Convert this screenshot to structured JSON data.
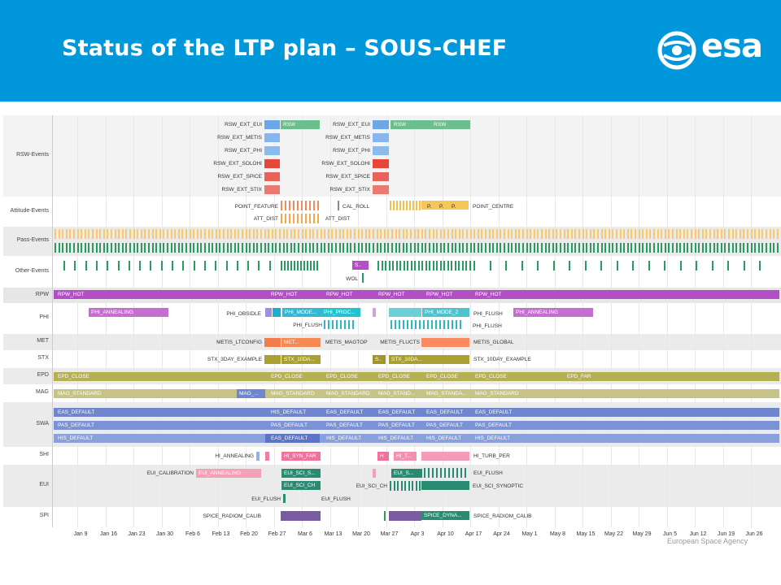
{
  "header": {
    "title": "Status of the LTP plan – SOUS-CHEF",
    "logo_text": "esa",
    "agency": "European Space Agency"
  },
  "colors": {
    "header_bg": "#0098db",
    "rsw": "#6bbf8e",
    "rpw": "#b24fc4",
    "phi": "#c46fd0",
    "met": "#ff7f50",
    "stx": "#a8a030",
    "epd": "#b5b152",
    "mag": "#c7c386",
    "swa": "#6f86cf",
    "shi": "#f08fb0",
    "eui": "#2a8a72"
  },
  "axis": {
    "ticks": [
      "Jan 9",
      "Jan 16",
      "Jan 23",
      "Jan 30",
      "Feb 6",
      "Feb 13",
      "Feb 20",
      "Feb 27",
      "Mar 6",
      "Mar 13",
      "Mar 20",
      "Mar 27",
      "Apr 3",
      "Apr 10",
      "Apr 17",
      "Apr 24",
      "May 1",
      "May 8",
      "May 15",
      "May 22",
      "May 29",
      "Jun 5",
      "Jun 12",
      "Jun 19",
      "Jun 26"
    ]
  },
  "rows": [
    {
      "name": "RSW-Events",
      "labels": [
        "RSW_EXT_EUI",
        "RSW_EXT_METIS",
        "RSW_EXT_PHI",
        "RSW_EXT_SOLOHI",
        "RSW_EXT_SPICE",
        "RSW_EXT_STIX",
        "RSW_EXT_EUI",
        "RSW_EXT_METIS",
        "RSW_EXT_PHI",
        "RSW_EXT_SOLOHI",
        "RSW_EXT_SPICE",
        "RSW_EXT_STIX",
        "RSW",
        "RSW",
        "RSW"
      ]
    },
    {
      "name": "Attitude-Events",
      "labels": [
        "POINT_FEATURE",
        "ATT_DIST",
        "ATT_DIST",
        "CAL_ROLL",
        "P.",
        "P.",
        "P.",
        "POINT_CENTRE"
      ]
    },
    {
      "name": "Pass-Events",
      "labels": []
    },
    {
      "name": "Other-Events",
      "labels": [
        "S..",
        "WOL"
      ]
    },
    {
      "name": "RPW",
      "labels": [
        "RPW_HOT",
        "RPW_HOT",
        "RPW_HOT",
        "RPW_HOT",
        "RPW_HOT",
        "RPW_HOT"
      ]
    },
    {
      "name": "PHI",
      "labels": [
        "PHI_ANNEALING",
        "PHI_OBSIDLE",
        "PHI_MODE...",
        "PHI_PROC...",
        "PHI_MODE_2",
        "PHI_FLUSH",
        "PHI_ANNEALING",
        "PHI_FLUSH",
        "PHI_FLUSH"
      ]
    },
    {
      "name": "MET",
      "labels": [
        "METIS_LTCONFIG",
        "MET...",
        "METIS_MAGTOP",
        "METIS_FLUCTS",
        "METIS_GLOBAL"
      ]
    },
    {
      "name": "STX",
      "labels": [
        "STX_3DAY_EXAMPLE",
        "STX_10DA...",
        "S..",
        "STX_10DA...",
        "STX_10DAY_EXAMPLE"
      ]
    },
    {
      "name": "EPD",
      "labels": [
        "EPD_CLOSE",
        "EPD_CLOSE",
        "EPD_CLOSE",
        "EPD_CLOSE",
        "EPD_CLOSE",
        "EPD_CLOSE",
        "EPD_FAR"
      ]
    },
    {
      "name": "MAG",
      "labels": [
        "MAG_STANDARD",
        "MAG_...",
        "MAG_STANDARD",
        "MAG_STANDARD",
        "MAG_STAND...",
        "MAG_STANDA...",
        "MAG_STANDARD"
      ]
    },
    {
      "name": "SWA",
      "labels": [
        "EAS_DEFAULT",
        "HIS_DEFAULT",
        "EAS_DEFAULT",
        "EAS_DEFAULT",
        "EAS_DEFAULT",
        "EAS_DEFAULT",
        "PAS_DEFAULT",
        "PAS_DEFAULT",
        "PAS_DEFAULT",
        "PAS_DEFAULT",
        "PAS_DEFAULT",
        "PAS_DEFAULT",
        "HIS_DEFAULT",
        "EAS_DEFAULT",
        "HIS_DEFAULT",
        "HIS_DEFAULT",
        "HIS_DEFAULT",
        "HIS_DEFAULT"
      ]
    },
    {
      "name": "SHI",
      "labels": [
        "HI_ANNEALING",
        "HI_SYN_FAR",
        "H",
        "HI_T...",
        "HI_TURB_PER"
      ]
    },
    {
      "name": "EUI",
      "labels": [
        "EUI_CALIBRATION",
        "EUI_ANNEALING",
        "EUI_SCI_S...",
        "EUI_SCI_CH",
        "EUI_S...",
        "EUI_FLUSH",
        "EUI_SCI_CH",
        "EUI_SCI_SYNOPTIC",
        "EUI_FLUSH",
        "EUI_FLUSH"
      ]
    },
    {
      "name": "SPI",
      "labels": [
        "SPICE_RADIOM_CALIB",
        "SPICE_DYNA...",
        "SPICE_RADIOM_CALIB"
      ]
    }
  ]
}
